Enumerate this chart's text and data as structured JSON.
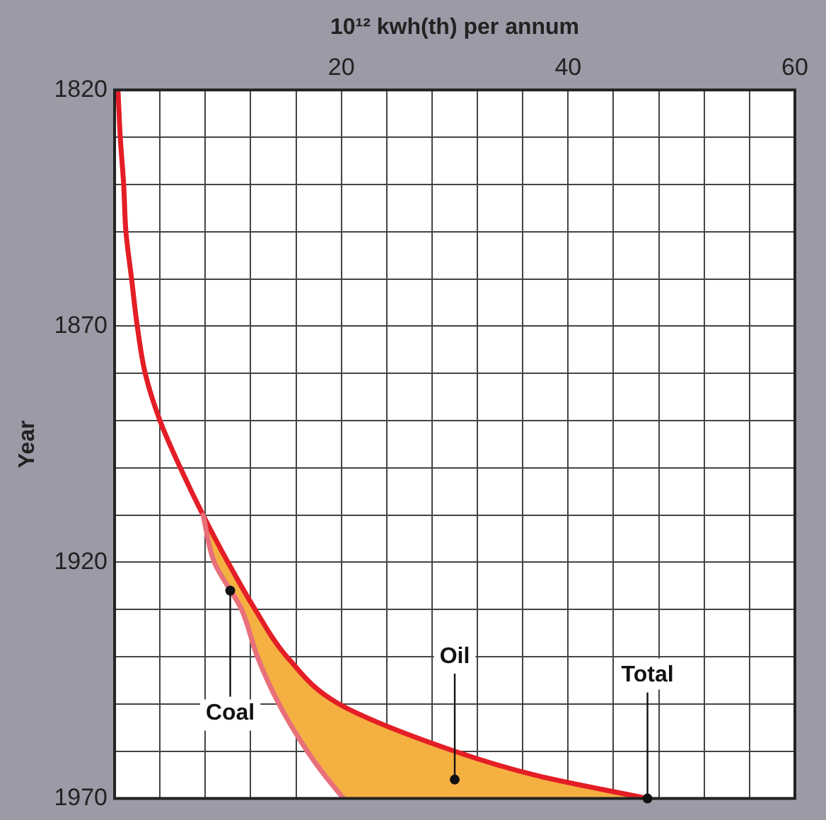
{
  "chart_data": {
    "type": "line",
    "orientation": "horizontal",
    "xlabel": "10¹² kwh(th) per annum",
    "ylabel": "Year",
    "x": [
      1820,
      1830,
      1840,
      1850,
      1860,
      1870,
      1880,
      1890,
      1900,
      1910,
      1920,
      1930,
      1940,
      1950,
      1960,
      1965,
      1970
    ],
    "xlim": [
      0,
      60
    ],
    "xticks": [
      {
        "value": 0,
        "label": null
      },
      {
        "value": 4,
        "label": null
      },
      {
        "value": 8,
        "label": null
      },
      {
        "value": 12,
        "label": null
      },
      {
        "value": 16,
        "label": null
      },
      20,
      {
        "value": 24,
        "label": null
      },
      {
        "value": 28,
        "label": null
      },
      {
        "value": 32,
        "label": null
      },
      {
        "value": 36,
        "label": null
      },
      40,
      {
        "value": 44,
        "label": null
      },
      {
        "value": 48,
        "label": null
      },
      {
        "value": 52,
        "label": null
      },
      {
        "value": 56,
        "label": null
      },
      60
    ],
    "ylim": [
      1970,
      1820
    ],
    "yticks": [
      1820,
      {
        "value": 1830,
        "label": null
      },
      {
        "value": 1840,
        "label": null
      },
      {
        "value": 1850,
        "label": null
      },
      {
        "value": 1860,
        "label": null
      },
      1870,
      {
        "value": 1880,
        "label": null
      },
      {
        "value": 1890,
        "label": null
      },
      {
        "value": 1900,
        "label": null
      },
      {
        "value": 1910,
        "label": null
      },
      1920,
      {
        "value": 1930,
        "label": null
      },
      {
        "value": 1940,
        "label": null
      },
      {
        "value": 1950,
        "label": null
      },
      {
        "value": 1960,
        "label": null
      },
      1970
    ],
    "grid": true,
    "legend": false,
    "marker": "none",
    "series": [
      {
        "type": "line",
        "color": "#e8707a",
        "values": [
          null,
          null,
          null,
          null,
          null,
          null,
          null,
          null,
          null,
          7.8,
          8.8,
          11.2,
          12.6,
          14.5,
          17.0,
          18.5,
          20.2
        ]
      },
      {
        "type": "area",
        "color": "#f5b042",
        "values": [
          null,
          null,
          null,
          null,
          null,
          null,
          null,
          null,
          null,
          7.8,
          10.0,
          12.4,
          15.2,
          19.8,
          30,
          37,
          47
        ]
      },
      {
        "type": "line",
        "color": "#e41e26",
        "values": [
          0.3,
          0.5,
          0.8,
          1.0,
          1.5,
          2.0,
          2.7,
          4.0,
          5.8,
          7.8,
          10.0,
          12.4,
          15.2,
          19.8,
          30,
          37,
          47
        ]
      }
    ],
    "annotations": [
      {
        "text": "Coal",
        "x": 10.2,
        "y": 1926
      },
      {
        "text": "Oil",
        "x": 30,
        "y": 1966
      },
      {
        "text": "Total",
        "x": 47,
        "y": 1970
      }
    ]
  }
}
